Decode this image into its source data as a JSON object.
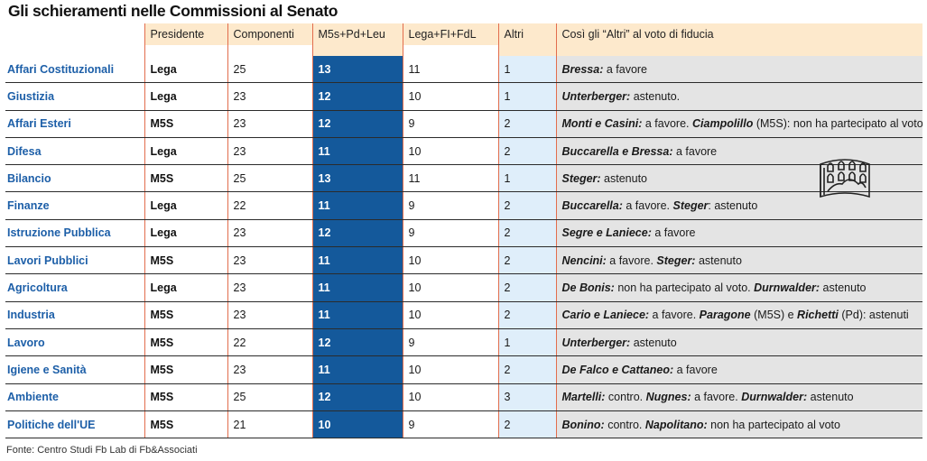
{
  "title": "Gli schieramenti nelle Commissioni al Senato",
  "columns": {
    "presidente": "Presidente",
    "componenti": "Componenti",
    "maggioranza": "M5s+Pd+Leu",
    "opposizione": "Lega+FI+FdL",
    "altri": "Altri",
    "note": "Così gli “Altri” al voto di fiducia"
  },
  "rows": [
    {
      "name": "Affari Costituzionali",
      "pres": "Lega",
      "comp": "25",
      "maj": "13",
      "opp": "11",
      "alt": "1",
      "note": [
        [
          "Bressa:",
          true
        ],
        [
          " a favore",
          false
        ]
      ]
    },
    {
      "name": "Giustizia",
      "pres": "Lega",
      "comp": "23",
      "maj": "12",
      "opp": "10",
      "alt": "1",
      "note": [
        [
          "Unterberger:",
          true
        ],
        [
          " astenuto.",
          false
        ]
      ]
    },
    {
      "name": "Affari Esteri",
      "pres": "M5S",
      "comp": "23",
      "maj": "12",
      "opp": "9",
      "alt": "2",
      "note": [
        [
          "Monti e Casini:",
          true
        ],
        [
          " a favore. ",
          false
        ],
        [
          "Ciampolillo",
          true
        ],
        [
          " (M5S): non ha partecipato al voto",
          false
        ]
      ]
    },
    {
      "name": "Difesa",
      "pres": "Lega",
      "comp": "23",
      "maj": "11",
      "opp": "10",
      "alt": "2",
      "note": [
        [
          "Buccarella e Bressa:",
          true
        ],
        [
          " a favore",
          false
        ]
      ]
    },
    {
      "name": "Bilancio",
      "pres": "M5S",
      "comp": "25",
      "maj": "13",
      "opp": "11",
      "alt": "1",
      "note": [
        [
          "Steger:",
          true
        ],
        [
          " astenuto",
          false
        ]
      ]
    },
    {
      "name": "Finanze",
      "pres": "Lega",
      "comp": "22",
      "maj": "11",
      "opp": "9",
      "alt": "2",
      "note": [
        [
          "Buccarella:",
          true
        ],
        [
          " a favore. ",
          false
        ],
        [
          "Steger",
          true
        ],
        [
          ": astenuto",
          false
        ]
      ]
    },
    {
      "name": "Istruzione Pubblica",
      "pres": "Lega",
      "comp": "23",
      "maj": "12",
      "opp": "9",
      "alt": "2",
      "note": [
        [
          "Segre e Laniece:",
          true
        ],
        [
          " a favore",
          false
        ]
      ]
    },
    {
      "name": "Lavori Pubblici",
      "pres": "M5S",
      "comp": "23",
      "maj": "11",
      "opp": "10",
      "alt": "2",
      "note": [
        [
          "Nencini:",
          true
        ],
        [
          " a favore. ",
          false
        ],
        [
          "Steger:",
          true
        ],
        [
          " astenuto",
          false
        ]
      ]
    },
    {
      "name": "Agricoltura",
      "pres": "Lega",
      "comp": "23",
      "maj": "11",
      "opp": "10",
      "alt": "2",
      "note": [
        [
          "De Bonis:",
          true
        ],
        [
          " non ha partecipato al voto. ",
          false
        ],
        [
          "Durnwalder:",
          true
        ],
        [
          " astenuto",
          false
        ]
      ]
    },
    {
      "name": "Industria",
      "pres": "M5S",
      "comp": "23",
      "maj": "11",
      "opp": "10",
      "alt": "2",
      "note": [
        [
          "Cario e Laniece:",
          true
        ],
        [
          " a favore. ",
          false
        ],
        [
          "Paragone",
          true
        ],
        [
          " (M5S) e ",
          false
        ],
        [
          "Richetti",
          true
        ],
        [
          " (Pd): astenuti",
          false
        ]
      ]
    },
    {
      "name": "Lavoro",
      "pres": "M5S",
      "comp": "22",
      "maj": "12",
      "opp": "9",
      "alt": "1",
      "note": [
        [
          "Unterberger:",
          true
        ],
        [
          " astenuto",
          false
        ]
      ]
    },
    {
      "name": "Igiene e Sanità",
      "pres": "M5S",
      "comp": "23",
      "maj": "11",
      "opp": "10",
      "alt": "2",
      "note": [
        [
          "De Falco e Cattaneo:",
          true
        ],
        [
          " a favore",
          false
        ]
      ]
    },
    {
      "name": "Ambiente",
      "pres": "M5S",
      "comp": "25",
      "maj": "12",
      "opp": "10",
      "alt": "3",
      "note": [
        [
          "Martelli:",
          true
        ],
        [
          " contro. ",
          false
        ],
        [
          "Nugnes:",
          true
        ],
        [
          " a favore. ",
          false
        ],
        [
          "Durnwalder:",
          true
        ],
        [
          " astenuto",
          false
        ]
      ]
    },
    {
      "name": "Politiche dell'UE",
      "pres": "M5S",
      "comp": "21",
      "maj": "10",
      "opp": "9",
      "alt": "2",
      "note": [
        [
          "Bonino:",
          true
        ],
        [
          " contro. ",
          false
        ],
        [
          "Napolitano:",
          true
        ],
        [
          " non ha partecipato al voto",
          false
        ]
      ]
    }
  ],
  "footer": "Fonte: Centro Studi Fb Lab di Fb&Associati",
  "icon": "senate-building-icon",
  "colors": {
    "title": "#111111",
    "name": "#1d5fa8",
    "header_bg": "#fde9cc",
    "majority_bg": "#14599b",
    "altri_bg": "#dfeefa",
    "note_bg": "#e4e4e4",
    "divider": "#e26d4d"
  }
}
